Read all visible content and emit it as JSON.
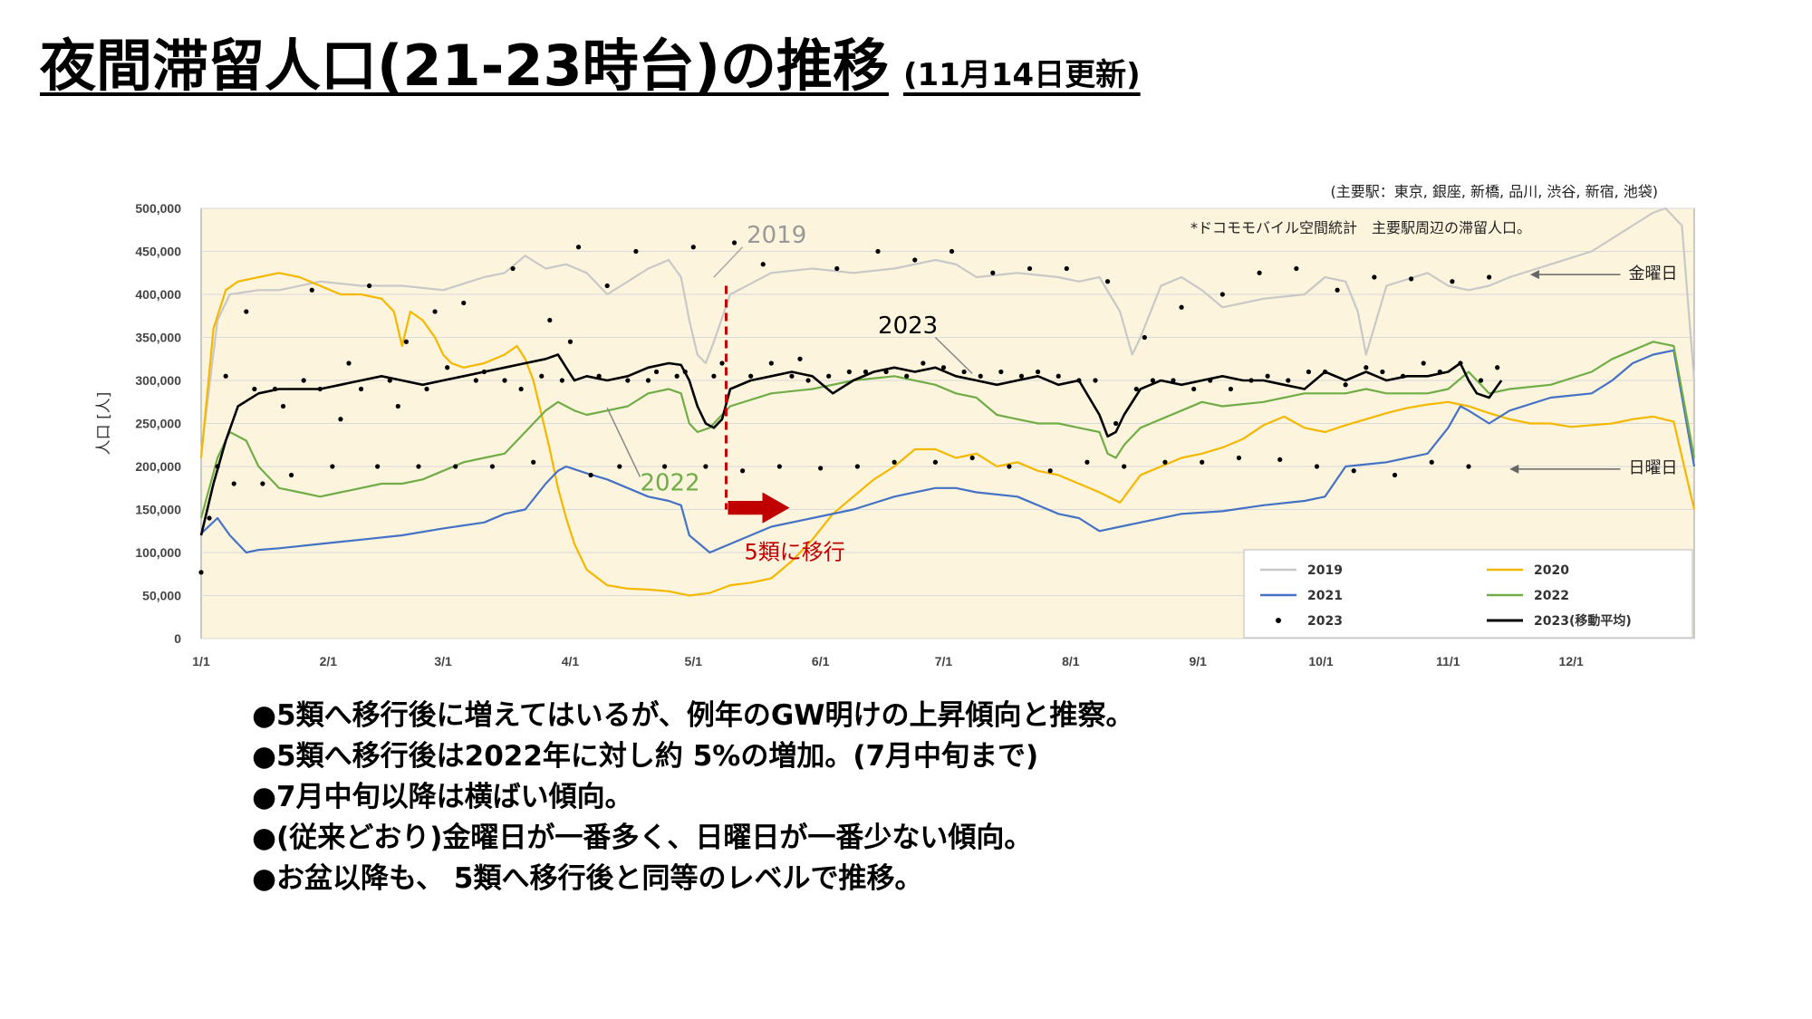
{
  "header": {
    "title": "夜間滞留人口(21-23時台)の推移",
    "updated": "(11月14日更新)"
  },
  "chart_data": {
    "type": "line",
    "ylabel": "人口 [人]",
    "ylim": [
      0,
      500000
    ],
    "yticks": [
      0,
      50000,
      100000,
      150000,
      200000,
      250000,
      300000,
      350000,
      400000,
      450000,
      500000
    ],
    "ytick_labels": [
      "0",
      "50,000",
      "100,000",
      "150,000",
      "200,000",
      "250,000",
      "300,000",
      "350,000",
      "400,000",
      "450,000",
      "500,000"
    ],
    "xlim": [
      1,
      365
    ],
    "xticks": [
      1,
      32,
      60,
      91,
      121,
      152,
      182,
      213,
      244,
      274,
      305,
      335
    ],
    "xtick_labels": [
      "1/1",
      "2/1",
      "3/1",
      "4/1",
      "5/1",
      "6/1",
      "7/1",
      "8/1",
      "9/1",
      "10/1",
      "11/1",
      "12/1"
    ],
    "note_stations": "(主要駅：東京, 銀座, 新橋, 品川, 渋谷, 新宿, 池袋)",
    "note_source": "*ドコモモバイル空間統計　主要駅周辺の滞留人口。",
    "legend_position": "bottom-right",
    "series": [
      {
        "name": "2019",
        "color": "#c8c8c8",
        "x": [
          1,
          5,
          8,
          15,
          20,
          30,
          40,
          50,
          60,
          70,
          75,
          80,
          85,
          90,
          95,
          100,
          105,
          110,
          115,
          118,
          120,
          122,
          124,
          126,
          130,
          140,
          150,
          160,
          170,
          180,
          185,
          190,
          200,
          210,
          215,
          220,
          225,
          228,
          230,
          235,
          240,
          245,
          250,
          260,
          270,
          275,
          280,
          283,
          285,
          290,
          300,
          305,
          310,
          315,
          320,
          330,
          340,
          350,
          355,
          358,
          362,
          365
        ],
        "y": [
          215000,
          370000,
          400000,
          405000,
          405000,
          415000,
          410000,
          410000,
          405000,
          420000,
          425000,
          445000,
          430000,
          435000,
          425000,
          400000,
          415000,
          430000,
          440000,
          420000,
          370000,
          330000,
          320000,
          345000,
          400000,
          425000,
          430000,
          425000,
          430000,
          440000,
          435000,
          420000,
          425000,
          420000,
          415000,
          420000,
          380000,
          330000,
          350000,
          410000,
          420000,
          405000,
          385000,
          395000,
          400000,
          420000,
          415000,
          380000,
          330000,
          410000,
          425000,
          410000,
          405000,
          410000,
          420000,
          435000,
          450000,
          480000,
          495000,
          500000,
          480000,
          300000
        ]
      },
      {
        "name": "2020",
        "color": "#f5b800",
        "x": [
          1,
          4,
          7,
          10,
          15,
          20,
          25,
          30,
          35,
          40,
          45,
          48,
          50,
          52,
          55,
          58,
          60,
          62,
          65,
          70,
          75,
          78,
          80,
          82,
          84,
          86,
          88,
          90,
          92,
          95,
          100,
          105,
          110,
          115,
          120,
          125,
          130,
          135,
          140,
          145,
          150,
          155,
          160,
          165,
          170,
          175,
          180,
          185,
          190,
          195,
          200,
          205,
          210,
          215,
          220,
          225,
          230,
          235,
          240,
          245,
          250,
          255,
          260,
          265,
          270,
          275,
          280,
          285,
          290,
          295,
          300,
          305,
          310,
          315,
          320,
          325,
          330,
          335,
          340,
          345,
          350,
          355,
          360,
          365
        ],
        "y": [
          210000,
          360000,
          405000,
          415000,
          420000,
          425000,
          420000,
          410000,
          400000,
          400000,
          395000,
          380000,
          340000,
          380000,
          370000,
          350000,
          330000,
          320000,
          315000,
          320000,
          330000,
          340000,
          325000,
          300000,
          260000,
          220000,
          175000,
          140000,
          110000,
          80000,
          62000,
          58000,
          57000,
          55000,
          50000,
          53000,
          62000,
          65000,
          70000,
          90000,
          115000,
          145000,
          165000,
          185000,
          200000,
          220000,
          220000,
          210000,
          215000,
          200000,
          205000,
          195000,
          190000,
          180000,
          170000,
          158000,
          190000,
          200000,
          210000,
          215000,
          222000,
          232000,
          248000,
          258000,
          245000,
          240000,
          248000,
          255000,
          262000,
          268000,
          272000,
          275000,
          270000,
          262000,
          255000,
          250000,
          250000,
          246000,
          248000,
          250000,
          255000,
          258000,
          252000,
          150000
        ]
      },
      {
        "name": "2021",
        "color": "#4472c4",
        "x": [
          1,
          5,
          8,
          12,
          15,
          20,
          30,
          40,
          50,
          60,
          70,
          75,
          80,
          85,
          88,
          90,
          95,
          100,
          105,
          110,
          115,
          118,
          120,
          125,
          130,
          140,
          150,
          160,
          170,
          180,
          185,
          190,
          200,
          210,
          215,
          220,
          225,
          230,
          240,
          250,
          260,
          270,
          275,
          280,
          290,
          300,
          305,
          308,
          310,
          315,
          320,
          330,
          340,
          345,
          350,
          355,
          360,
          365
        ],
        "y": [
          122000,
          140000,
          120000,
          100000,
          103000,
          105000,
          110000,
          115000,
          120000,
          128000,
          135000,
          145000,
          150000,
          180000,
          195000,
          200000,
          192000,
          185000,
          175000,
          165000,
          160000,
          155000,
          120000,
          100000,
          110000,
          130000,
          140000,
          150000,
          165000,
          175000,
          175000,
          170000,
          165000,
          145000,
          140000,
          125000,
          130000,
          135000,
          145000,
          148000,
          155000,
          160000,
          165000,
          200000,
          205000,
          215000,
          245000,
          270000,
          265000,
          250000,
          265000,
          280000,
          285000,
          300000,
          320000,
          330000,
          335000,
          200000
        ]
      },
      {
        "name": "2022",
        "color": "#70ad47",
        "x": [
          1,
          5,
          8,
          12,
          15,
          20,
          25,
          30,
          35,
          40,
          45,
          50,
          55,
          60,
          65,
          70,
          75,
          80,
          85,
          88,
          90,
          92,
          95,
          100,
          105,
          110,
          115,
          118,
          120,
          122,
          125,
          130,
          140,
          150,
          160,
          170,
          180,
          185,
          190,
          195,
          200,
          205,
          210,
          215,
          220,
          222,
          224,
          226,
          230,
          240,
          245,
          250,
          260,
          270,
          275,
          280,
          285,
          290,
          300,
          305,
          310,
          315,
          320,
          330,
          340,
          345,
          350,
          355,
          360,
          365
        ],
        "y": [
          140000,
          210000,
          240000,
          230000,
          200000,
          175000,
          170000,
          165000,
          170000,
          175000,
          180000,
          180000,
          185000,
          195000,
          205000,
          210000,
          215000,
          240000,
          265000,
          275000,
          270000,
          265000,
          260000,
          265000,
          270000,
          285000,
          290000,
          285000,
          250000,
          240000,
          245000,
          270000,
          285000,
          290000,
          300000,
          305000,
          295000,
          285000,
          280000,
          260000,
          255000,
          250000,
          250000,
          245000,
          240000,
          215000,
          210000,
          225000,
          245000,
          265000,
          275000,
          270000,
          275000,
          285000,
          285000,
          285000,
          290000,
          285000,
          285000,
          290000,
          310000,
          285000,
          290000,
          295000,
          310000,
          325000,
          335000,
          345000,
          340000,
          210000
        ]
      },
      {
        "name": "2023(移動平均)",
        "color": "#000000",
        "x": [
          1,
          4,
          7,
          10,
          15,
          20,
          25,
          30,
          35,
          40,
          45,
          50,
          55,
          60,
          65,
          70,
          75,
          80,
          85,
          88,
          90,
          92,
          95,
          100,
          105,
          110,
          115,
          118,
          120,
          122,
          124,
          126,
          128,
          130,
          135,
          140,
          145,
          150,
          155,
          160,
          165,
          170,
          175,
          180,
          185,
          190,
          195,
          200,
          205,
          210,
          215,
          220,
          222,
          224,
          226,
          230,
          235,
          240,
          245,
          250,
          255,
          260,
          265,
          270,
          275,
          280,
          285,
          290,
          295,
          300,
          305,
          308,
          310,
          312,
          315,
          318
        ],
        "y": [
          120000,
          180000,
          230000,
          270000,
          285000,
          290000,
          290000,
          290000,
          295000,
          300000,
          305000,
          300000,
          295000,
          300000,
          305000,
          310000,
          315000,
          320000,
          325000,
          330000,
          315000,
          300000,
          305000,
          300000,
          305000,
          315000,
          320000,
          318000,
          300000,
          270000,
          250000,
          245000,
          255000,
          290000,
          300000,
          305000,
          310000,
          305000,
          285000,
          300000,
          310000,
          315000,
          310000,
          315000,
          305000,
          300000,
          295000,
          300000,
          305000,
          295000,
          300000,
          260000,
          235000,
          240000,
          260000,
          290000,
          300000,
          295000,
          300000,
          305000,
          300000,
          300000,
          295000,
          290000,
          310000,
          300000,
          310000,
          300000,
          305000,
          305000,
          310000,
          320000,
          300000,
          285000,
          280000,
          300000
        ]
      },
      {
        "name": "2023",
        "color": "#000000",
        "style": "dots",
        "x": [
          1,
          3,
          5,
          7,
          9,
          12,
          14,
          16,
          19,
          21,
          23,
          26,
          28,
          30,
          33,
          35,
          37,
          40,
          42,
          44,
          47,
          49,
          51,
          54,
          56,
          58,
          61,
          63,
          65,
          68,
          70,
          72,
          75,
          77,
          79,
          82,
          84,
          86,
          89,
          91,
          93,
          96,
          98,
          100,
          103,
          105,
          107,
          110,
          112,
          114,
          117,
          119,
          121,
          124,
          126,
          128,
          131,
          133,
          135,
          138,
          140,
          142,
          145,
          147,
          149,
          152,
          154,
          156,
          159,
          161,
          163,
          166,
          168,
          170,
          173,
          175,
          177,
          180,
          182,
          184,
          187,
          189,
          191,
          194,
          196,
          198,
          201,
          203,
          205,
          208,
          210,
          212,
          215,
          217,
          219,
          222,
          224,
          226,
          229,
          231,
          233,
          236,
          238,
          240,
          243,
          245,
          247,
          250,
          252,
          254,
          257,
          259,
          261,
          264,
          266,
          268,
          271,
          273,
          275,
          278,
          280,
          282,
          285,
          287,
          289,
          292,
          294,
          296,
          299,
          301,
          303,
          306,
          308,
          310,
          313,
          315,
          317
        ],
        "y": [
          77000,
          140000,
          200000,
          305000,
          180000,
          380000,
          290000,
          180000,
          290000,
          270000,
          190000,
          300000,
          405000,
          290000,
          200000,
          255000,
          320000,
          290000,
          410000,
          200000,
          300000,
          270000,
          345000,
          200000,
          290000,
          380000,
          315000,
          200000,
          390000,
          300000,
          310000,
          200000,
          300000,
          430000,
          290000,
          205000,
          305000,
          370000,
          300000,
          345000,
          455000,
          190000,
          305000,
          410000,
          200000,
          300000,
          450000,
          300000,
          310000,
          200000,
          305000,
          310000,
          455000,
          200000,
          305000,
          320000,
          460000,
          195000,
          305000,
          435000,
          320000,
          200000,
          305000,
          325000,
          300000,
          198000,
          305000,
          430000,
          310000,
          200000,
          310000,
          450000,
          310000,
          205000,
          305000,
          440000,
          320000,
          205000,
          315000,
          450000,
          310000,
          210000,
          305000,
          425000,
          310000,
          200000,
          305000,
          430000,
          310000,
          195000,
          305000,
          430000,
          300000,
          205000,
          300000,
          415000,
          250000,
          200000,
          290000,
          350000,
          300000,
          205000,
          300000,
          385000,
          290000,
          205000,
          300000,
          400000,
          290000,
          210000,
          300000,
          425000,
          305000,
          208000,
          300000,
          430000,
          310000,
          200000,
          310000,
          405000,
          295000,
          195000,
          315000,
          420000,
          310000,
          190000,
          305000,
          418000,
          320000,
          205000,
          310000,
          415000,
          320000,
          200000,
          300000,
          420000,
          315000
        ]
      }
    ],
    "annotations": {
      "label_2019": "2019",
      "label_2022": "2022",
      "label_2023": "2023",
      "friday": "金曜日",
      "sunday": "日曜日",
      "transition": "5類に移行",
      "transition_day": 129
    }
  },
  "legend": {
    "items": [
      "2019",
      "2020",
      "2021",
      "2022",
      "2023",
      "2023(移動平均)"
    ]
  },
  "bullets": [
    "●5類へ移行後に増えてはいるが、例年のGW明けの上昇傾向と推察。",
    "●5類へ移行後は2022年に対し約 5%の増加。(7月中旬まで)",
    "●7月中旬以降は横ばい傾向。",
    "●(従来どおり)金曜日が一番多く、日曜日が一番少ない傾向。",
    "●お盆以降も、 5類へ移行後と同等のレベルで推移。"
  ]
}
